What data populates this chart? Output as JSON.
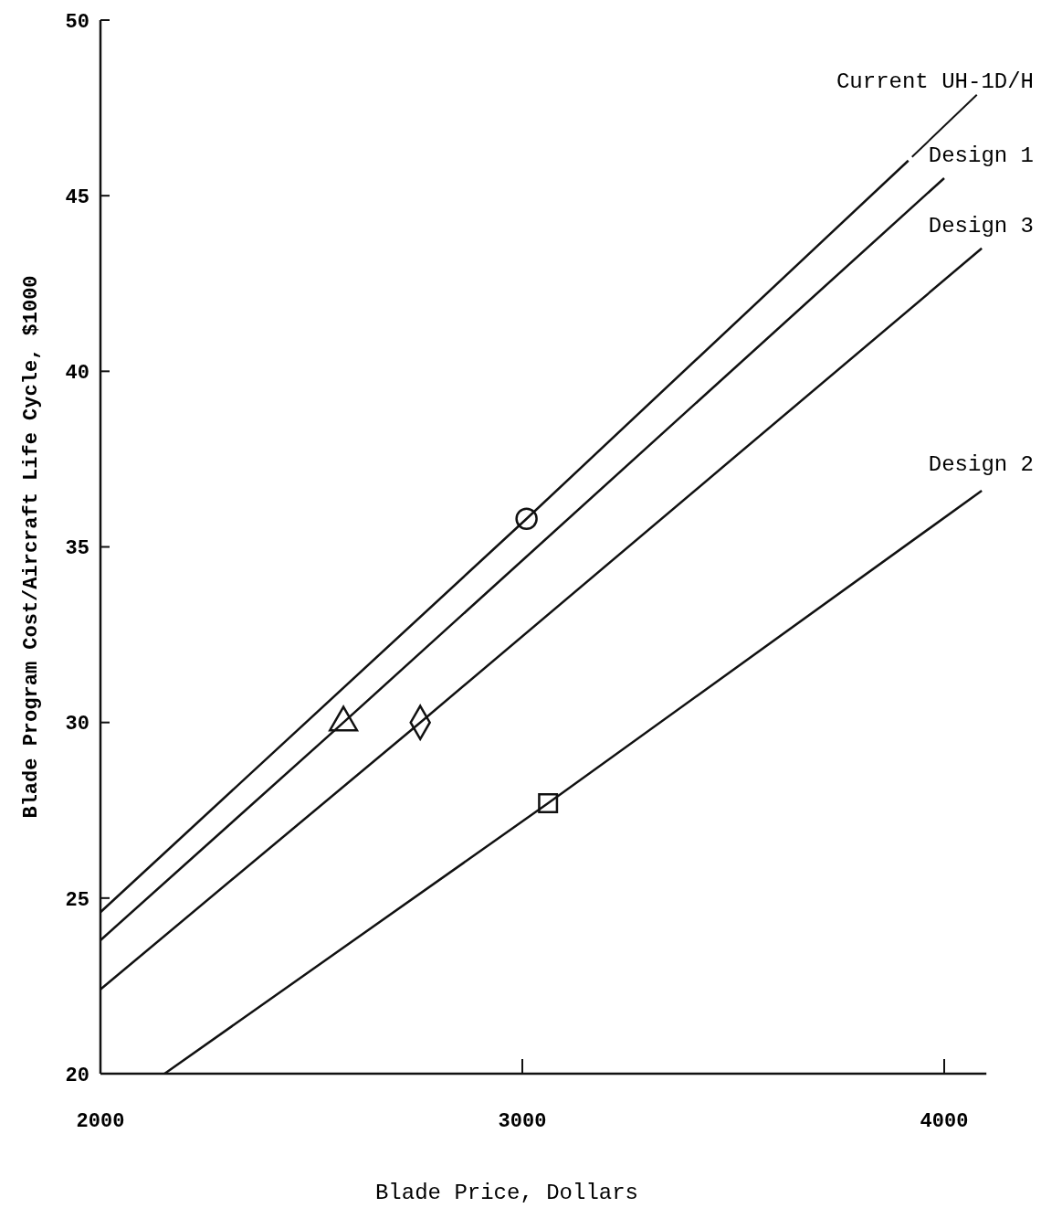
{
  "chart_data": {
    "type": "line",
    "xlabel": "Blade Price, Dollars",
    "ylabel": "Blade Program Cost/Aircraft Life Cycle, $1000",
    "xlim": [
      2000,
      4100
    ],
    "xticks": [
      2000,
      3000,
      4000
    ],
    "ylim": [
      20,
      50
    ],
    "yticks": [
      20,
      25,
      30,
      35,
      40,
      45,
      50
    ],
    "grid": false,
    "line_style": "solid",
    "series": [
      {
        "name": "Current UH-1D/H",
        "color": "#111111",
        "x": [
          2000,
          3010,
          3915
        ],
        "values": [
          24.6,
          35.8,
          46.0
        ]
      },
      {
        "name": "Design 1",
        "color": "#111111",
        "x": [
          2000,
          2576,
          4000
        ],
        "values": [
          23.8,
          30.0,
          45.5
        ]
      },
      {
        "name": "Design 3",
        "color": "#111111",
        "x": [
          2000,
          2758,
          4089
        ],
        "values": [
          22.4,
          30.0,
          43.5
        ]
      },
      {
        "name": "Design 2",
        "color": "#111111",
        "x": [
          2152,
          3061,
          4089
        ],
        "values": [
          20.0,
          27.7,
          36.6
        ]
      },
      {
        "type": "scatter",
        "color": "#111111",
        "marker": "circle",
        "x": [
          3010
        ],
        "values": [
          35.8
        ]
      },
      {
        "type": "scatter",
        "color": "#111111",
        "marker": "triangle",
        "x": [
          2576
        ],
        "values": [
          30.0
        ]
      },
      {
        "type": "scatter",
        "color": "#111111",
        "marker": "diamond",
        "x": [
          2758
        ],
        "values": [
          30.0
        ]
      },
      {
        "type": "scatter",
        "color": "#111111",
        "marker": "square",
        "x": [
          3061
        ],
        "values": [
          27.7
        ]
      }
    ]
  }
}
